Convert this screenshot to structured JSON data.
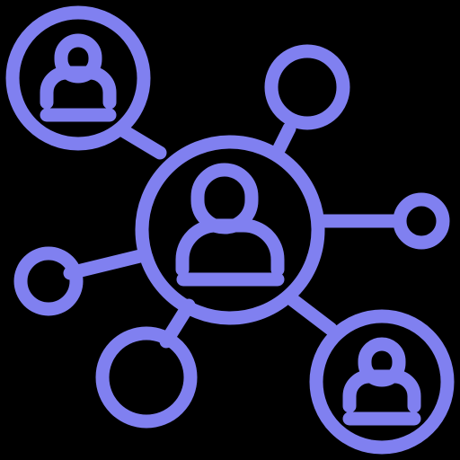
{
  "icon": {
    "name": "network-icon",
    "stroke_color": "#8080f0",
    "background_color": "#000000"
  }
}
